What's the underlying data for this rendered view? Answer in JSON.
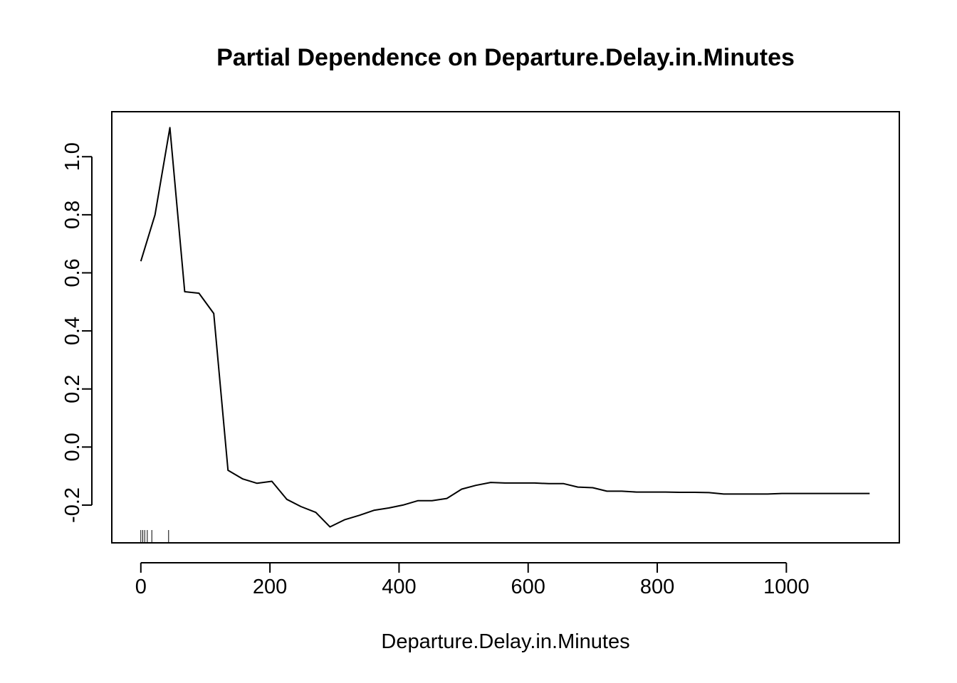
{
  "chart_data": {
    "type": "line",
    "title": "Partial Dependence on Departure.Delay.in.Minutes",
    "xlabel": "Departure.Delay.in.Minutes",
    "ylabel": "",
    "xlim": [
      -45,
      1175
    ],
    "ylim": [
      -0.33,
      1.155
    ],
    "x_ticks": [
      0,
      200,
      400,
      600,
      800,
      1000
    ],
    "x_tick_labels": [
      "0",
      "200",
      "400",
      "600",
      "800",
      "1000"
    ],
    "y_ticks": [
      -0.2,
      0.0,
      0.2,
      0.4,
      0.6,
      0.8,
      1.0
    ],
    "y_tick_labels": [
      "-0.2",
      "0.0",
      "0.2",
      "0.4",
      "0.6",
      "0.8",
      "1.0"
    ],
    "grid": false,
    "series": [
      {
        "x": [
          0,
          22,
          45,
          68,
          90,
          113,
          135,
          158,
          180,
          203,
          226,
          248,
          271,
          293,
          316,
          339,
          361,
          384,
          406,
          429,
          451,
          474,
          497,
          519,
          542,
          564,
          587,
          610,
          632,
          655,
          677,
          700,
          722,
          745,
          768,
          790,
          813,
          835,
          858,
          880,
          903,
          925,
          948,
          971,
          993,
          1016,
          1038,
          1061,
          1084,
          1106,
          1129
        ],
        "y": [
          0.64,
          0.8,
          1.1,
          0.535,
          0.53,
          0.46,
          -0.08,
          -0.11,
          -0.125,
          -0.118,
          -0.18,
          -0.205,
          -0.225,
          -0.275,
          -0.25,
          -0.235,
          -0.218,
          -0.21,
          -0.2,
          -0.185,
          -0.185,
          -0.177,
          -0.145,
          -0.132,
          -0.122,
          -0.124,
          -0.124,
          -0.124,
          -0.126,
          -0.126,
          -0.138,
          -0.14,
          -0.152,
          -0.152,
          -0.155,
          -0.155,
          -0.155,
          -0.156,
          -0.156,
          -0.157,
          -0.162,
          -0.162,
          -0.162,
          -0.162,
          -0.16,
          -0.16,
          -0.16,
          -0.16,
          -0.16,
          -0.16,
          -0.16
        ]
      }
    ],
    "rug": [
      0,
      3,
      6,
      10,
      17,
      43
    ]
  }
}
